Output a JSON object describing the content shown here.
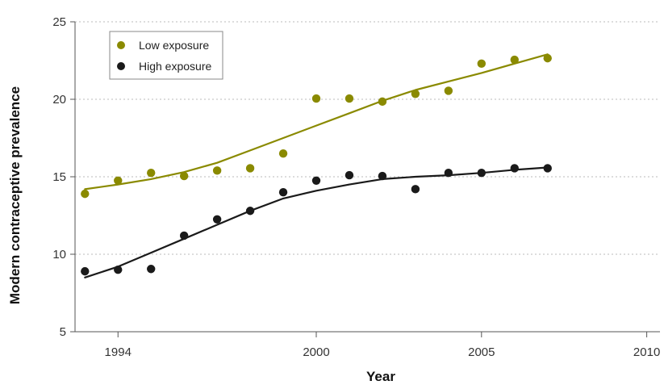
{
  "chart_data": {
    "type": "scatter",
    "title": "",
    "xlabel": "Year",
    "ylabel": "Modern contraceptive prevalence",
    "xlim": [
      1992.7,
      2010.4
    ],
    "ylim": [
      5,
      25
    ],
    "xticks": [
      1994,
      2000,
      2005,
      2010
    ],
    "yticks": [
      5,
      10,
      15,
      20,
      25
    ],
    "grid": "horizontal dotted",
    "legend_position": "top-left",
    "series": [
      {
        "name": "Low exposure",
        "color": "#8a8a00",
        "points": [
          {
            "x": 1993,
            "y": 13.9
          },
          {
            "x": 1994,
            "y": 14.75
          },
          {
            "x": 1995,
            "y": 15.25
          },
          {
            "x": 1996,
            "y": 15.05
          },
          {
            "x": 1997,
            "y": 15.4
          },
          {
            "x": 1998,
            "y": 15.55
          },
          {
            "x": 1999,
            "y": 16.5
          },
          {
            "x": 2000,
            "y": 20.05
          },
          {
            "x": 2001,
            "y": 20.05
          },
          {
            "x": 2002,
            "y": 19.85
          },
          {
            "x": 2003,
            "y": 20.35
          },
          {
            "x": 2004,
            "y": 20.55
          },
          {
            "x": 2005,
            "y": 22.3
          },
          {
            "x": 2006,
            "y": 22.55
          },
          {
            "x": 2007,
            "y": 22.65
          }
        ],
        "trend": [
          {
            "x": 1993,
            "y": 14.2
          },
          {
            "x": 1994,
            "y": 14.5
          },
          {
            "x": 1995,
            "y": 14.85
          },
          {
            "x": 1996,
            "y": 15.3
          },
          {
            "x": 1997,
            "y": 15.9
          },
          {
            "x": 1998,
            "y": 16.7
          },
          {
            "x": 1999,
            "y": 17.5
          },
          {
            "x": 2000,
            "y": 18.3
          },
          {
            "x": 2001,
            "y": 19.1
          },
          {
            "x": 2002,
            "y": 19.9
          },
          {
            "x": 2003,
            "y": 20.6
          },
          {
            "x": 2004,
            "y": 21.15
          },
          {
            "x": 2005,
            "y": 21.7
          },
          {
            "x": 2006,
            "y": 22.3
          },
          {
            "x": 2007,
            "y": 22.9
          }
        ]
      },
      {
        "name": "High exposure",
        "color": "#1a1a1a",
        "points": [
          {
            "x": 1993,
            "y": 8.9
          },
          {
            "x": 1994,
            "y": 9.0
          },
          {
            "x": 1995,
            "y": 9.05
          },
          {
            "x": 1996,
            "y": 11.2
          },
          {
            "x": 1997,
            "y": 12.25
          },
          {
            "x": 1998,
            "y": 12.8
          },
          {
            "x": 1999,
            "y": 14.0
          },
          {
            "x": 2000,
            "y": 14.75
          },
          {
            "x": 2001,
            "y": 15.1
          },
          {
            "x": 2002,
            "y": 15.05
          },
          {
            "x": 2003,
            "y": 14.2
          },
          {
            "x": 2004,
            "y": 15.25
          },
          {
            "x": 2005,
            "y": 15.25
          },
          {
            "x": 2006,
            "y": 15.55
          },
          {
            "x": 2007,
            "y": 15.55
          }
        ],
        "trend": [
          {
            "x": 1993,
            "y": 8.5
          },
          {
            "x": 1994,
            "y": 9.2
          },
          {
            "x": 1995,
            "y": 10.1
          },
          {
            "x": 1996,
            "y": 11.0
          },
          {
            "x": 1997,
            "y": 11.9
          },
          {
            "x": 1998,
            "y": 12.8
          },
          {
            "x": 1999,
            "y": 13.6
          },
          {
            "x": 2000,
            "y": 14.1
          },
          {
            "x": 2001,
            "y": 14.5
          },
          {
            "x": 2002,
            "y": 14.85
          },
          {
            "x": 2003,
            "y": 15.0
          },
          {
            "x": 2004,
            "y": 15.1
          },
          {
            "x": 2005,
            "y": 15.25
          },
          {
            "x": 2006,
            "y": 15.45
          },
          {
            "x": 2007,
            "y": 15.6
          }
        ]
      }
    ]
  }
}
